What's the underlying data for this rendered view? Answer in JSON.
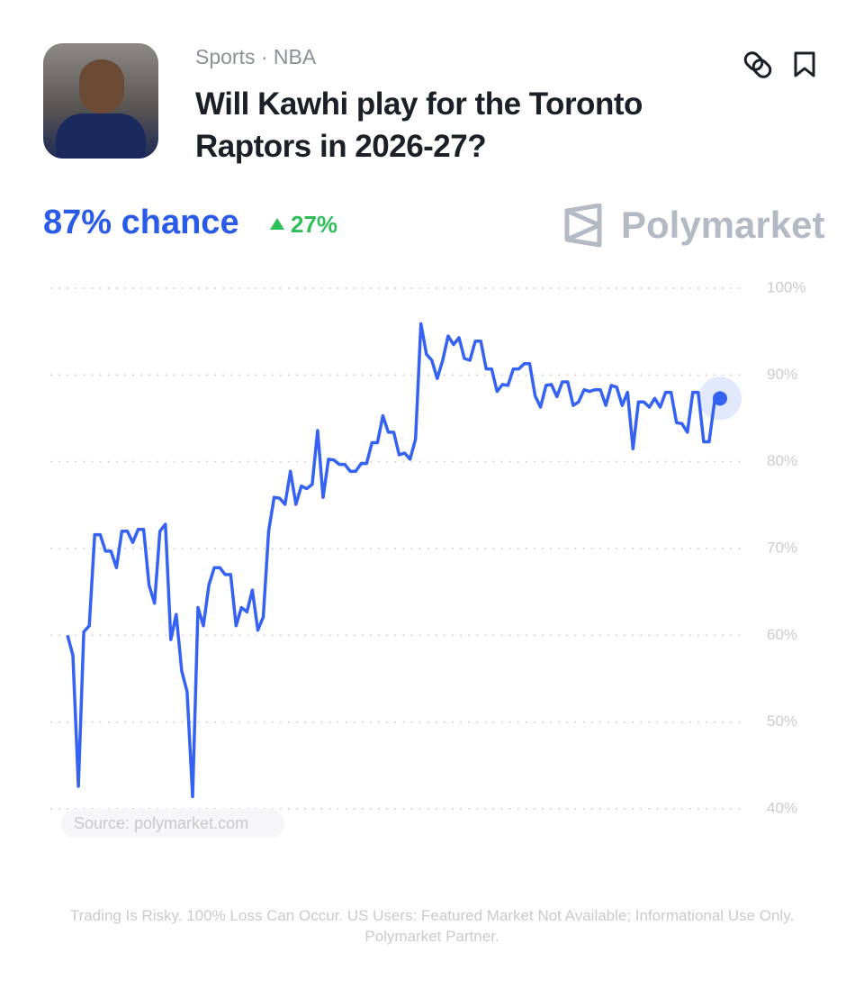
{
  "header": {
    "category": "Sports · NBA",
    "title": "Will Kawhi play for the Toronto Raptors in 2026-27?"
  },
  "summary": {
    "chance": "87% chance",
    "change": "27%"
  },
  "brand": "Polymarket",
  "source": "Source: polymarket.com",
  "disclaimer": "Trading Is Risky. 100% Loss Can Occur. US Users: Featured Market Not Available; Informational Use Only. Polymarket Partner.",
  "chart_data": {
    "type": "line",
    "color": "#3562f0",
    "grid": true,
    "ylim": [
      40,
      100
    ],
    "yticks": [
      {
        "value": 100,
        "label": "100%"
      },
      {
        "value": 90,
        "label": "90%"
      },
      {
        "value": 80,
        "label": "80%"
      },
      {
        "value": 70,
        "label": "70%"
      },
      {
        "value": 60,
        "label": "60%"
      },
      {
        "value": 50,
        "label": "50%"
      },
      {
        "value": 40,
        "label": "40%"
      }
    ],
    "values": [
      60.0,
      57.7,
      42.6,
      60.4,
      61.1,
      71.6,
      71.6,
      69.7,
      69.7,
      67.8,
      72.0,
      72.0,
      70.7,
      72.2,
      72.2,
      65.8,
      63.7,
      72.0,
      72.8,
      59.5,
      62.4,
      55.9,
      53.5,
      41.4,
      63.2,
      61.1,
      65.8,
      67.8,
      67.8,
      67.0,
      67.0,
      61.1,
      63.2,
      62.7,
      65.2,
      60.6,
      62.1,
      72.0,
      75.9,
      75.8,
      75.1,
      78.9,
      75.1,
      77.2,
      76.9,
      77.4,
      83.6,
      75.9,
      80.3,
      80.2,
      79.7,
      79.7,
      78.9,
      78.9,
      79.8,
      79.8,
      82.2,
      82.2,
      85.3,
      83.4,
      83.4,
      80.8,
      81.0,
      80.3,
      82.6,
      95.9,
      92.4,
      91.7,
      89.6,
      91.7,
      94.5,
      93.5,
      94.3,
      91.9,
      91.7,
      93.9,
      93.9,
      90.7,
      90.7,
      88.1,
      88.9,
      88.8,
      90.7,
      90.7,
      91.3,
      91.3,
      87.6,
      86.3,
      88.8,
      88.9,
      87.5,
      89.2,
      89.2,
      86.5,
      86.9,
      88.3,
      88.1,
      88.3,
      88.3,
      86.5,
      88.8,
      88.6,
      86.5,
      88.0,
      81.5,
      86.9,
      86.9,
      86.3,
      87.3,
      86.3,
      88.0,
      88.0,
      84.5,
      84.4,
      83.4,
      88.0,
      88.0,
      82.3,
      82.3,
      87.0,
      87.3
    ]
  }
}
